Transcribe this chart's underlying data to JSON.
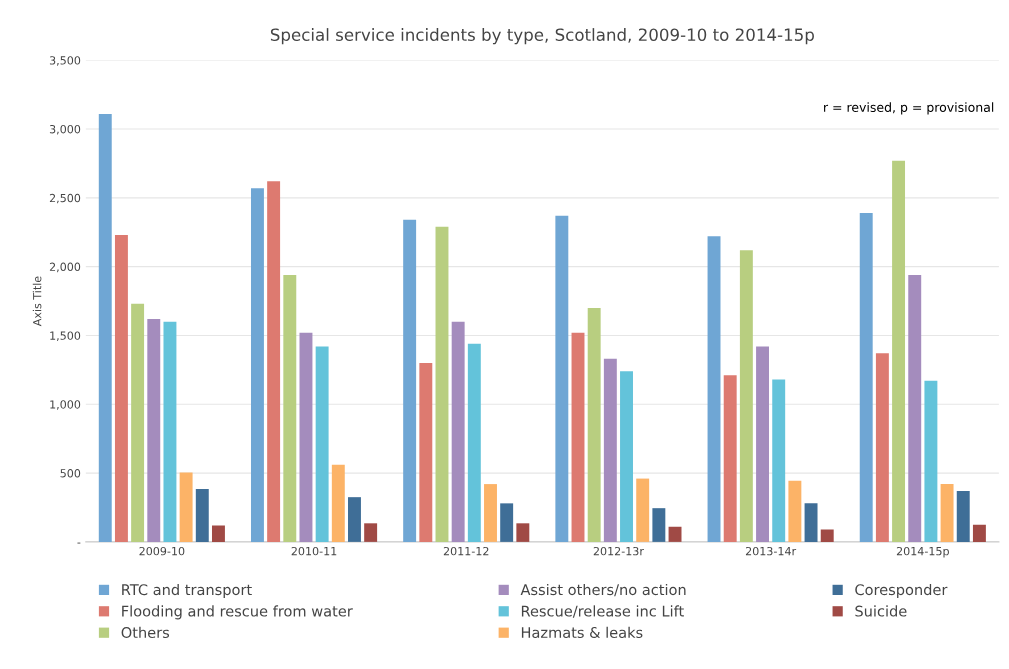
{
  "chart_data": {
    "type": "bar",
    "title": "Special service incidents by type, Scotland, 2009-10 to 2014-15p",
    "ylabel": "Axis Title",
    "categories": [
      "2009-10",
      "2010-11",
      "2011-12",
      "2012-13r",
      "2013-14r",
      "2014-15p"
    ],
    "series": [
      {
        "name": "RTC and transport",
        "color": "#6fa6d4",
        "values": [
          3110,
          2570,
          2340,
          2370,
          2220,
          2390
        ]
      },
      {
        "name": "Flooding and rescue from water",
        "color": "#dd7a70",
        "values": [
          2230,
          2620,
          1300,
          1520,
          1210,
          1370
        ]
      },
      {
        "name": "Others",
        "color": "#b8ce80",
        "values": [
          1730,
          1940,
          2290,
          1700,
          2120,
          2770
        ]
      },
      {
        "name": "Assist others/no action",
        "color": "#a48cbd",
        "values": [
          1620,
          1520,
          1600,
          1330,
          1420,
          1940
        ]
      },
      {
        "name": "Rescue/release inc Lift",
        "color": "#63c3da",
        "values": [
          1600,
          1420,
          1440,
          1240,
          1180,
          1170
        ]
      },
      {
        "name": "Hazmats & leaks",
        "color": "#fcb367",
        "values": [
          505,
          560,
          420,
          460,
          445,
          420
        ]
      },
      {
        "name": "Coresponder",
        "color": "#3f6e97",
        "values": [
          385,
          325,
          280,
          245,
          280,
          370
        ]
      },
      {
        "name": "Suicide",
        "color": "#a04a45",
        "values": [
          120,
          135,
          135,
          110,
          90,
          125
        ]
      }
    ],
    "ylim": [
      0,
      3500
    ],
    "yticks": [
      {
        "value": 0,
        "label": "-"
      },
      {
        "value": 500,
        "label": "500"
      },
      {
        "value": 1000,
        "label": "1,000"
      },
      {
        "value": 1500,
        "label": "1,500"
      },
      {
        "value": 2000,
        "label": "2,000"
      },
      {
        "value": 2500,
        "label": "2,500"
      },
      {
        "value": 3000,
        "label": "3,000"
      },
      {
        "value": 3500,
        "label": "3,500"
      }
    ],
    "grid": "y",
    "legend": "bottom",
    "annotations": [
      "r = revised, p = provisional"
    ]
  }
}
